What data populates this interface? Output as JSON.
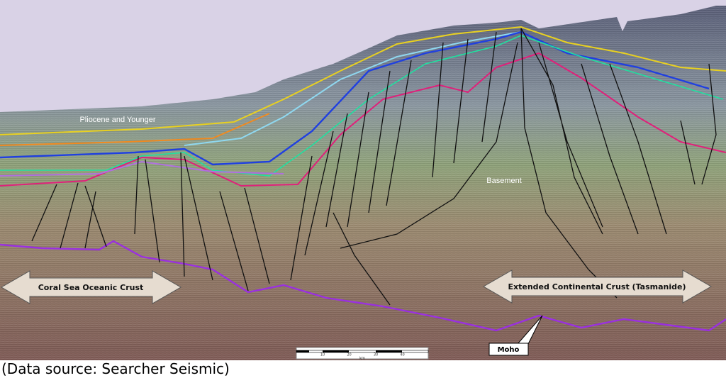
{
  "labels": {
    "pliocene": "Pliocene and Younger",
    "basement": "Basement",
    "oceanic": "Coral Sea Oceanic Crust",
    "continental": "Extended Continental Crust (Tasmanide)",
    "moho": "Moho"
  },
  "scale_bar": {
    "ticks": [
      "10",
      "20",
      "30",
      "40"
    ],
    "unit": "km"
  },
  "caption": "(Data source: Searcher Seismic)"
}
